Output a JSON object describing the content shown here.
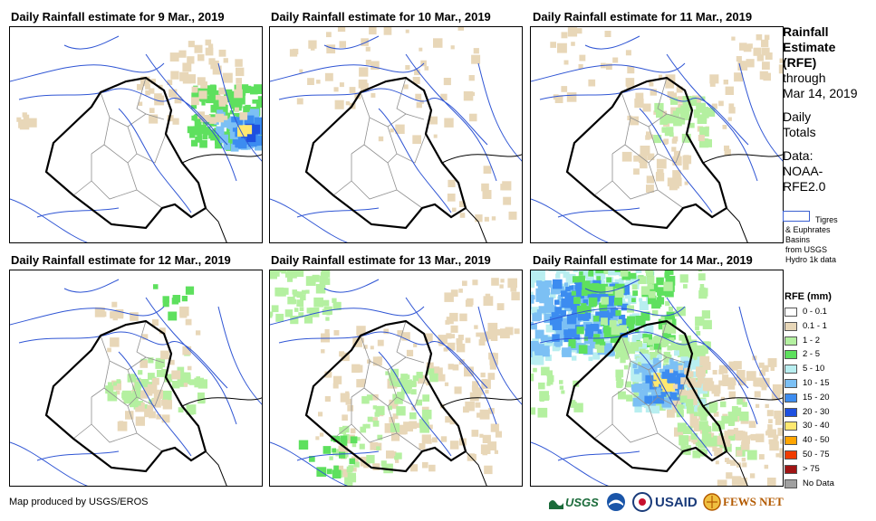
{
  "panels": [
    {
      "title": "Daily Rainfall estimate for 9 Mar., 2019"
    },
    {
      "title": "Daily Rainfall estimate for 10 Mar., 2019"
    },
    {
      "title": "Daily Rainfall estimate for 11 Mar., 2019"
    },
    {
      "title": "Daily Rainfall estimate for 12 Mar., 2019"
    },
    {
      "title": "Daily Rainfall estimate for 13 Mar., 2019"
    },
    {
      "title": "Daily Rainfall estimate for 14 Mar., 2019"
    }
  ],
  "legend": {
    "title_lines": [
      "Rainfall",
      "Estimate",
      "(RFE)"
    ],
    "through": "through",
    "date": "Mar 14, 2019",
    "daily": "Daily",
    "totals": "Totals",
    "data_label": "Data:",
    "source1": "NOAA-",
    "source2": "RFE2.0",
    "basin_lines": [
      "Tigres",
      "& Euphrates",
      "Basins",
      "from USGS",
      "Hydro 1k data"
    ],
    "rfe_title": "RFE (mm)",
    "classes": [
      {
        "label": "0 - 0.1",
        "color": "#ffffff"
      },
      {
        "label": "0.1 - 1",
        "color": "#e8d7b8"
      },
      {
        "label": "1 - 2",
        "color": "#b4f0a0"
      },
      {
        "label": "2 - 5",
        "color": "#5ee05e"
      },
      {
        "label": "5 - 10",
        "color": "#b8eef0"
      },
      {
        "label": "10 - 15",
        "color": "#7cc0f4"
      },
      {
        "label": "15 - 20",
        "color": "#3c8cf0"
      },
      {
        "label": "20 - 30",
        "color": "#1e50e0"
      },
      {
        "label": "30 - 40",
        "color": "#ffe870"
      },
      {
        "label": "40 - 50",
        "color": "#ffa500"
      },
      {
        "label": "50 - 75",
        "color": "#f03c00"
      },
      {
        "label": "> 75",
        "color": "#a01414"
      },
      {
        "label": "No Data",
        "color": "#a0a0a0"
      }
    ]
  },
  "footer": {
    "credit": "Map produced by USGS/EROS",
    "logos": [
      "USGS",
      "NOAA",
      "USAID",
      "FEWS NET"
    ]
  }
}
